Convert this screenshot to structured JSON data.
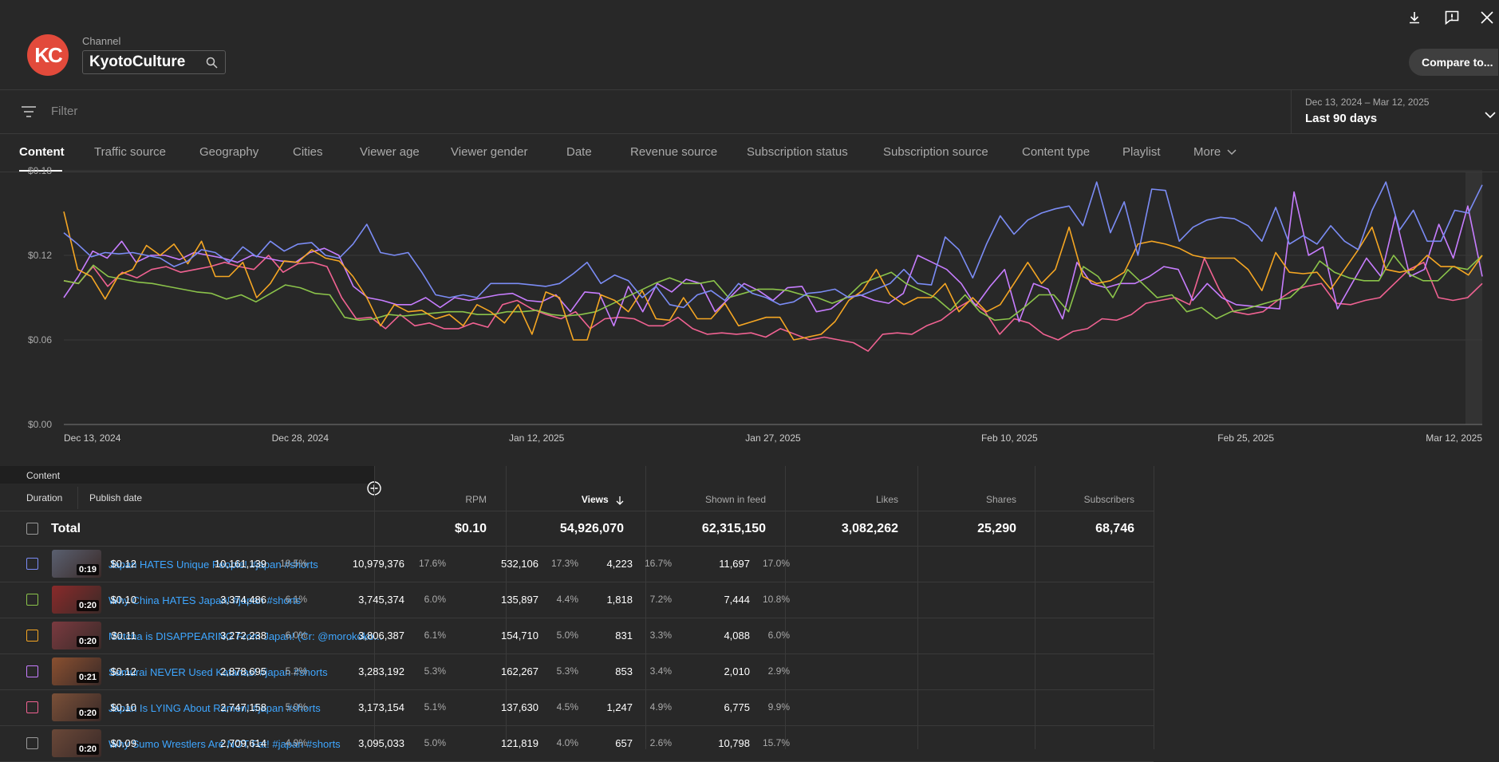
{
  "header": {
    "channel_label": "Channel",
    "channel_value": "KyotoCulture",
    "avatar_text": "KC",
    "compare_label": "Compare to..."
  },
  "filter": {
    "placeholder": "Filter"
  },
  "date_range": {
    "range": "Dec 13, 2024 – Mar 12, 2025",
    "preset": "Last 90 days"
  },
  "tabs": [
    {
      "label": "Content",
      "active": true
    },
    {
      "label": "Traffic source"
    },
    {
      "label": "Geography"
    },
    {
      "label": "Cities"
    },
    {
      "label": "Viewer age"
    },
    {
      "label": "Viewer gender"
    },
    {
      "label": "Date"
    },
    {
      "label": "Revenue source"
    },
    {
      "label": "Subscription status"
    },
    {
      "label": "Subscription source"
    },
    {
      "label": "Content type"
    },
    {
      "label": "Playlist"
    },
    {
      "label": "More"
    }
  ],
  "chart_data": {
    "type": "line",
    "y_ticks": [
      "$0.00",
      "$0.06",
      "$0.12",
      "$0.18"
    ],
    "ylim": [
      0,
      0.18
    ],
    "x_ticks": [
      "Dec 13, 2024",
      "Dec 28, 2024",
      "Jan 12, 2025",
      "Jan 27, 2025",
      "Feb 10, 2025",
      "Feb 25, 2025",
      "Mar 12, 2025"
    ],
    "x_days": 90,
    "series": [
      {
        "color": "#7b8cf5",
        "values": [
          0.136,
          0.128,
          0.119,
          0.122,
          0.121,
          0.122,
          0.12,
          0.118,
          0.112,
          0.116,
          0.124,
          0.122,
          0.115,
          0.126,
          0.119,
          0.13,
          0.123,
          0.128,
          0.129,
          0.12,
          0.118,
          0.128,
          0.142,
          0.122,
          0.12,
          0.122,
          0.108,
          0.092,
          0.09,
          0.092,
          0.09,
          0.1,
          0.1,
          0.1,
          0.099,
          0.098,
          0.1,
          0.107,
          0.115,
          0.1,
          0.106,
          0.102,
          0.09,
          0.098,
          0.085,
          0.083,
          0.092,
          0.095,
          0.088,
          0.1,
          0.093,
          0.09,
          0.085,
          0.087,
          0.093,
          0.094,
          0.096,
          0.09,
          0.092,
          0.096,
          0.1,
          0.11,
          0.1,
          0.099,
          0.133,
          0.124,
          0.104,
          0.128,
          0.148,
          0.135,
          0.145,
          0.15,
          0.153,
          0.155,
          0.141,
          0.172,
          0.136,
          0.158,
          0.12,
          0.167,
          0.166,
          0.13,
          0.14,
          0.145,
          0.147,
          0.146,
          0.141,
          0.13,
          0.154,
          0.128,
          0.134,
          0.128,
          0.141,
          0.13,
          0.124,
          0.152,
          0.172,
          0.138,
          0.152,
          0.13,
          0.13,
          0.152,
          0.15,
          0.17
        ]
      },
      {
        "color": "#f5a623",
        "values": [
          0.151,
          0.11,
          0.105,
          0.089,
          0.106,
          0.11,
          0.127,
          0.12,
          0.128,
          0.114,
          0.13,
          0.105,
          0.105,
          0.115,
          0.09,
          0.1,
          0.116,
          0.115,
          0.124,
          0.118,
          0.116,
          0.105,
          0.09,
          0.07,
          0.085,
          0.08,
          0.081,
          0.075,
          0.078,
          0.07,
          0.085,
          0.08,
          0.072,
          0.085,
          0.064,
          0.094,
          0.09,
          0.06,
          0.06,
          0.092,
          0.088,
          0.08,
          0.095,
          0.075,
          0.074,
          0.09,
          0.075,
          0.075,
          0.086,
          0.07,
          0.073,
          0.076,
          0.076,
          0.06,
          0.062,
          0.064,
          0.073,
          0.088,
          0.095,
          0.11,
          0.092,
          0.085,
          0.09,
          0.09,
          0.1,
          0.08,
          0.09,
          0.08,
          0.085,
          0.1,
          0.115,
          0.1,
          0.11,
          0.14,
          0.105,
          0.1,
          0.102,
          0.108,
          0.128,
          0.13,
          0.128,
          0.125,
          0.12,
          0.118,
          0.118,
          0.118,
          0.11,
          0.095,
          0.122,
          0.108,
          0.107,
          0.108,
          0.096,
          0.11,
          0.124,
          0.14,
          0.11,
          0.108,
          0.11,
          0.12,
          0.112,
          0.112,
          0.106,
          0.12
        ]
      },
      {
        "color": "#8bc34a",
        "values": [
          0.102,
          0.1,
          0.113,
          0.105,
          0.103,
          0.101,
          0.1,
          0.098,
          0.096,
          0.094,
          0.093,
          0.089,
          0.092,
          0.087,
          0.093,
          0.099,
          0.097,
          0.093,
          0.092,
          0.076,
          0.074,
          0.075,
          0.078,
          0.077,
          0.078,
          0.079,
          0.08,
          0.08,
          0.078,
          0.078,
          0.08,
          0.08,
          0.081,
          0.078,
          0.077,
          0.078,
          0.08,
          0.085,
          0.09,
          0.095,
          0.1,
          0.104,
          0.1,
          0.1,
          0.102,
          0.09,
          0.093,
          0.096,
          0.096,
          0.095,
          0.092,
          0.09,
          0.086,
          0.09,
          0.1,
          0.104,
          0.108,
          0.1,
          0.095,
          0.09,
          0.081,
          0.092,
          0.08,
          0.074,
          0.075,
          0.083,
          0.092,
          0.092,
          0.08,
          0.112,
          0.105,
          0.09,
          0.11,
          0.1,
          0.09,
          0.092,
          0.08,
          0.083,
          0.075,
          0.08,
          0.082,
          0.085,
          0.088,
          0.09,
          0.1,
          0.116,
          0.108,
          0.104,
          0.102,
          0.102,
          0.12,
          0.107,
          0.102,
          0.102,
          0.112,
          0.11,
          0.12
        ]
      },
      {
        "color": "#c77dff",
        "values": [
          0.09,
          0.105,
          0.123,
          0.118,
          0.13,
          0.115,
          0.12,
          0.12,
          0.117,
          0.122,
          0.12,
          0.118,
          0.115,
          0.12,
          0.118,
          0.116,
          0.115,
          0.122,
          0.125,
          0.12,
          0.098,
          0.09,
          0.088,
          0.085,
          0.085,
          0.09,
          0.083,
          0.09,
          0.088,
          0.09,
          0.092,
          0.093,
          0.088,
          0.087,
          0.092,
          0.08,
          0.094,
          0.093,
          0.07,
          0.098,
          0.08,
          0.1,
          0.094,
          0.103,
          0.1,
          0.08,
          0.09,
          0.1,
          0.095,
          0.088,
          0.097,
          0.098,
          0.08,
          0.082,
          0.09,
          0.092,
          0.088,
          0.086,
          0.093,
          0.12,
          0.115,
          0.11,
          0.1,
          0.084,
          0.098,
          0.11,
          0.073,
          0.1,
          0.096,
          0.075,
          0.115,
          0.1,
          0.097,
          0.1,
          0.1,
          0.105,
          0.112,
          0.11,
          0.088,
          0.1,
          0.09,
          0.085,
          0.084,
          0.083,
          0.082,
          0.165,
          0.12,
          0.126,
          0.082,
          0.1,
          0.118,
          0.105,
          0.148,
          0.105,
          0.11,
          0.142,
          0.118,
          0.155,
          0.105
        ]
      },
      {
        "color": "#f06292",
        "values": [
          0.102,
          0.1,
          0.112,
          0.098,
          0.108,
          0.104,
          0.11,
          0.112,
          0.108,
          0.11,
          0.112,
          0.115,
          0.112,
          0.11,
          0.12,
          0.108,
          0.114,
          0.115,
          0.112,
          0.09,
          0.075,
          0.076,
          0.068,
          0.078,
          0.07,
          0.072,
          0.068,
          0.068,
          0.072,
          0.069,
          0.085,
          0.088,
          0.082,
          0.078,
          0.075,
          0.08,
          0.068,
          0.075,
          0.076,
          0.075,
          0.07,
          0.07,
          0.076,
          0.068,
          0.064,
          0.065,
          0.064,
          0.065,
          0.062,
          0.068,
          0.064,
          0.06,
          0.062,
          0.06,
          0.058,
          0.052,
          0.064,
          0.065,
          0.064,
          0.07,
          0.074,
          0.082,
          0.088,
          0.08,
          0.064,
          0.075,
          0.072,
          0.064,
          0.06,
          0.066,
          0.068,
          0.075,
          0.074,
          0.078,
          0.086,
          0.088,
          0.09,
          0.085,
          0.118,
          0.096,
          0.08,
          0.078,
          0.08,
          0.088,
          0.095,
          0.098,
          0.1,
          0.086,
          0.085,
          0.088,
          0.09,
          0.1,
          0.11,
          0.115,
          0.09,
          0.088,
          0.09,
          0.1
        ]
      }
    ]
  },
  "table": {
    "section_label": "Content",
    "subheaders": {
      "duration": "Duration",
      "publish_date": "Publish date"
    },
    "columns": [
      "RPM",
      "Views",
      "Shown in feed",
      "Likes",
      "Shares",
      "Subscribers"
    ],
    "sorted_column": "Views",
    "total": {
      "label": "Total",
      "rpm": "$0.10",
      "views": "54,926,070",
      "shown": "62,315,150",
      "likes": "3,082,262",
      "shares": "25,290",
      "subscribers": "68,746"
    },
    "rows": [
      {
        "color": "#7b8cf5",
        "duration": "0:19",
        "title": "Japan HATES Unique People! #japan #shorts",
        "rpm": "$0.12",
        "views": "10,161,139",
        "views_pct": "18.5%",
        "shown": "10,979,376",
        "shown_pct": "17.6%",
        "likes": "532,106",
        "likes_pct": "17.3%",
        "shares": "4,223",
        "shares_pct": "16.7%",
        "subs": "11,697",
        "subs_pct": "17.0%",
        "thumb": "#5a6070"
      },
      {
        "color": "#8bc34a",
        "duration": "0:20",
        "title": "Why China HATES Japan! #japan #shorts",
        "rpm": "$0.10",
        "views": "3,374,486",
        "views_pct": "6.1%",
        "shown": "3,745,374",
        "shown_pct": "6.0%",
        "likes": "135,897",
        "likes_pct": "4.4%",
        "shares": "1,818",
        "shares_pct": "7.2%",
        "subs": "7,444",
        "subs_pct": "10.8%",
        "thumb": "#8a2a2a"
      },
      {
        "color": "#f5a623",
        "duration": "0:20",
        "title": "Matcha is DISAPPEARING From Japan! (Cr: @morokoko...",
        "rpm": "$0.11",
        "views": "3,272,238",
        "views_pct": "6.0%",
        "shown": "3,806,387",
        "shown_pct": "6.1%",
        "likes": "154,710",
        "likes_pct": "5.0%",
        "shares": "831",
        "shares_pct": "3.3%",
        "subs": "4,088",
        "subs_pct": "6.0%",
        "thumb": "#7a3a40"
      },
      {
        "color": "#c77dff",
        "duration": "0:21",
        "title": "Samurai NEVER Used Katanas! #japan #shorts",
        "rpm": "$0.12",
        "views": "2,878,695",
        "views_pct": "5.2%",
        "shown": "3,283,192",
        "shown_pct": "5.3%",
        "likes": "162,267",
        "likes_pct": "5.3%",
        "shares": "853",
        "shares_pct": "3.4%",
        "subs": "2,010",
        "subs_pct": "2.9%",
        "thumb": "#8a5030"
      },
      {
        "color": "#f06292",
        "duration": "0:20",
        "title": "Japan Is LYING About Ramen! #japan #shorts",
        "rpm": "$0.10",
        "views": "2,747,158",
        "views_pct": "5.0%",
        "shown": "3,173,154",
        "shown_pct": "5.1%",
        "likes": "137,630",
        "likes_pct": "4.5%",
        "shares": "1,247",
        "shares_pct": "4.9%",
        "subs": "6,775",
        "subs_pct": "9.9%",
        "thumb": "#7a5038"
      },
      {
        "color": "#9a9a9a",
        "duration": "0:20",
        "title": "Why Sumo Wrestlers Are NOT Fat! #japan #shorts",
        "rpm": "$0.09",
        "views": "2,709,614",
        "views_pct": "4.9%",
        "shown": "3,095,033",
        "shown_pct": "5.0%",
        "likes": "121,819",
        "likes_pct": "4.0%",
        "shares": "657",
        "shares_pct": "2.6%",
        "subs": "10,798",
        "subs_pct": "15.7%",
        "thumb": "#6a4838"
      }
    ]
  }
}
